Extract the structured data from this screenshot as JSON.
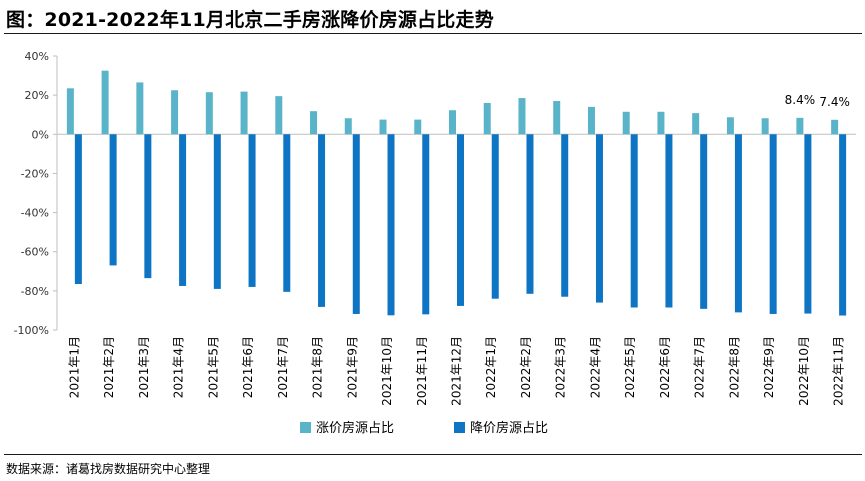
{
  "title": "图：2021-2022年11月北京二手房涨降价房源占比走势",
  "source": "数据来源：诸葛找房数据研究中心整理",
  "chart_data": {
    "type": "bar",
    "categories": [
      "2021年1月",
      "2021年2月",
      "2021年3月",
      "2021年4月",
      "2021年5月",
      "2021年6月",
      "2021年7月",
      "2021年8月",
      "2021年9月",
      "2021年10月",
      "2021年11月",
      "2021年12月",
      "2022年1月",
      "2022年2月",
      "2022年3月",
      "2022年4月",
      "2022年5月",
      "2022年6月",
      "2022年7月",
      "2022年8月",
      "2022年9月",
      "2022年10月",
      "2022年11月"
    ],
    "series": [
      {
        "name": "涨价房源占比",
        "color": "#5ab4c9",
        "values": [
          23.5,
          32.5,
          26.5,
          22.5,
          21.5,
          21.8,
          19.5,
          11.8,
          8.2,
          7.5,
          7.5,
          12.3,
          16.0,
          18.5,
          17.0,
          14.0,
          11.5,
          11.5,
          10.8,
          8.7,
          8.2,
          8.4,
          7.4
        ]
      },
      {
        "name": "降价房源占比",
        "color": "#0e74c4",
        "values": [
          -76.5,
          -67.0,
          -73.5,
          -77.5,
          -79.0,
          -78.0,
          -80.5,
          -88.2,
          -91.8,
          -92.5,
          -92.0,
          -87.7,
          -84.0,
          -81.5,
          -83.0,
          -86.0,
          -88.5,
          -88.5,
          -89.2,
          -91.0,
          -91.8,
          -91.6,
          -92.6
        ]
      }
    ],
    "data_labels": [
      {
        "series": 0,
        "index": 21,
        "text": "8.4%"
      },
      {
        "series": 0,
        "index": 22,
        "text": "7.4%"
      }
    ],
    "yticks": [
      "40%",
      "20%",
      "0%",
      "-20%",
      "-40%",
      "-60%",
      "-80%",
      "-100%"
    ],
    "ytick_values": [
      40,
      20,
      0,
      -20,
      -40,
      -60,
      -80,
      -100
    ],
    "ylim": [
      -100,
      40
    ],
    "grid": false,
    "legend_position": "bottom-center"
  }
}
